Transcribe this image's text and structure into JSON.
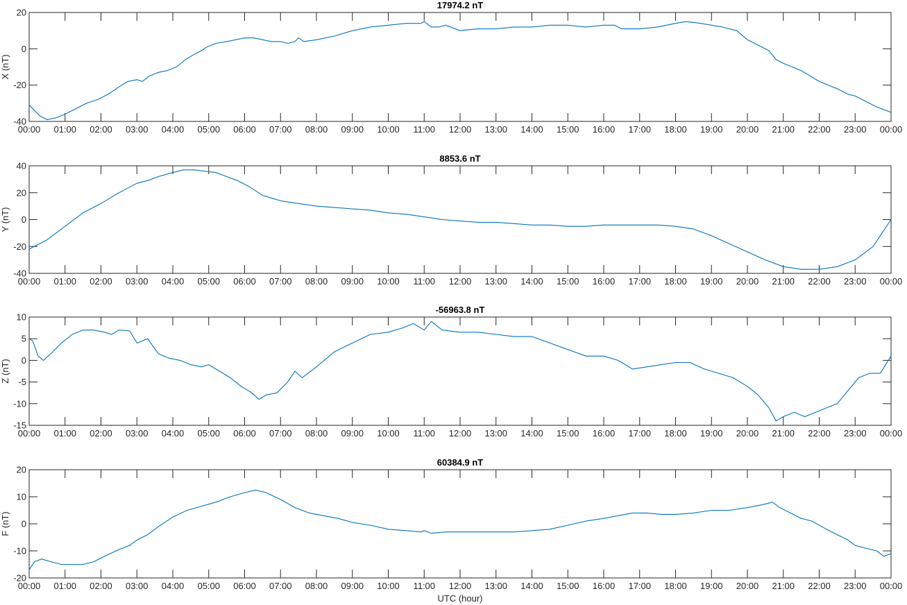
{
  "figure": {
    "xlabel": "UTC (hour)",
    "line_color": "#0072BD",
    "axis_color": "#262626",
    "background": "#ffffff"
  },
  "chart_data": [
    {
      "type": "line",
      "title": "17974.2 nT",
      "ylabel": "X (nT)",
      "xlabel": "",
      "x_unit": "hour (UTC)",
      "xlim": [
        0,
        24
      ],
      "ylim": [
        -40,
        20
      ],
      "yticks": [
        -40,
        -20,
        0,
        20
      ],
      "xtick_labels": [
        "00:00",
        "01:00",
        "02:00",
        "03:00",
        "04:00",
        "05:00",
        "06:00",
        "07:00",
        "08:00",
        "09:00",
        "10:00",
        "11:00",
        "12:00",
        "13:00",
        "14:00",
        "15:00",
        "16:00",
        "17:00",
        "18:00",
        "19:00",
        "20:00",
        "21:00",
        "22:00",
        "23:00",
        "00:00"
      ],
      "grid": false,
      "series": [
        {
          "x": [
            0,
            0.15,
            0.3,
            0.5,
            0.75,
            1.0,
            1.3,
            1.6,
            1.9,
            2.2,
            2.5,
            2.75,
            3.0,
            3.15,
            3.35,
            3.6,
            3.85,
            4.1,
            4.35,
            4.6,
            4.8,
            4.95,
            5.2,
            5.5,
            5.75,
            6.0,
            6.25,
            6.5,
            6.75,
            7.0,
            7.2,
            7.4,
            7.5,
            7.65,
            8.0,
            8.5,
            9.0,
            9.5,
            10.0,
            10.5,
            10.9,
            11.0,
            11.2,
            11.4,
            11.6,
            12.0,
            12.5,
            13.0,
            13.5,
            14.0,
            14.5,
            15.0,
            15.5,
            16.0,
            16.3,
            16.5,
            17.0,
            17.5,
            18.0,
            18.3,
            18.7,
            19.0,
            19.3,
            19.7,
            20.0,
            20.3,
            20.6,
            20.8,
            21.0,
            21.5,
            22.0,
            22.5,
            22.8,
            23.0,
            23.3,
            23.6,
            24.0
          ],
          "y": [
            -31,
            -34,
            -37,
            -39,
            -38,
            -36,
            -33,
            -30,
            -28,
            -25,
            -21,
            -18,
            -17,
            -18,
            -15,
            -13,
            -12,
            -10,
            -6,
            -3,
            -1,
            1,
            3,
            4,
            5,
            6,
            6,
            5,
            4,
            4,
            3,
            4,
            6,
            4,
            5,
            7,
            10,
            12,
            13,
            14,
            14,
            15,
            12,
            12,
            13,
            10,
            11,
            11,
            12,
            12,
            13,
            13,
            12,
            13,
            13,
            11,
            11,
            12,
            14,
            15,
            14,
            13,
            12,
            10,
            5,
            2,
            -1,
            -6,
            -8,
            -12,
            -18,
            -22,
            -25,
            -26,
            -29,
            -32,
            -35
          ]
        }
      ]
    },
    {
      "type": "line",
      "title": "8853.6 nT",
      "ylabel": "Y (nT)",
      "xlabel": "",
      "x_unit": "hour (UTC)",
      "xlim": [
        0,
        24
      ],
      "ylim": [
        -40,
        40
      ],
      "yticks": [
        -40,
        -20,
        0,
        20,
        40
      ],
      "xtick_labels": [
        "00:00",
        "01:00",
        "02:00",
        "03:00",
        "04:00",
        "05:00",
        "06:00",
        "07:00",
        "08:00",
        "09:00",
        "10:00",
        "11:00",
        "12:00",
        "13:00",
        "14:00",
        "15:00",
        "16:00",
        "17:00",
        "18:00",
        "19:00",
        "20:00",
        "21:00",
        "22:00",
        "23:00",
        "00:00"
      ],
      "grid": false,
      "series": [
        {
          "x": [
            0,
            0.5,
            1.0,
            1.5,
            2.0,
            2.5,
            3.0,
            3.3,
            3.6,
            4.0,
            4.3,
            4.6,
            4.9,
            5.2,
            5.5,
            5.8,
            6.1,
            6.5,
            7.0,
            7.5,
            8.0,
            8.5,
            9.0,
            9.5,
            10.0,
            10.5,
            11.0,
            11.5,
            12.0,
            12.5,
            13.0,
            13.5,
            14.0,
            14.5,
            15.0,
            15.5,
            16.0,
            16.5,
            17.0,
            17.5,
            18.0,
            18.5,
            19.0,
            19.5,
            20.0,
            20.5,
            21.0,
            21.5,
            22.0,
            22.5,
            23.0,
            23.5,
            24.0
          ],
          "y": [
            -22,
            -15,
            -5,
            5,
            12,
            20,
            27,
            29,
            32,
            35,
            37,
            37,
            36,
            35,
            32,
            29,
            25,
            18,
            14,
            12,
            10,
            9,
            8,
            7,
            5,
            4,
            2,
            0,
            -1,
            -2,
            -2,
            -3,
            -4,
            -4,
            -5,
            -5,
            -4,
            -4,
            -4,
            -4,
            -5,
            -7,
            -12,
            -18,
            -24,
            -30,
            -35,
            -37,
            -37,
            -35,
            -30,
            -20,
            0
          ]
        }
      ]
    },
    {
      "type": "line",
      "title": "-56963.8 nT",
      "ylabel": "Z (nT)",
      "xlabel": "",
      "x_unit": "hour (UTC)",
      "xlim": [
        0,
        24
      ],
      "ylim": [
        -15,
        10
      ],
      "yticks": [
        -15,
        -10,
        -5,
        0,
        5,
        10
      ],
      "xtick_labels": [
        "00:00",
        "01:00",
        "02:00",
        "03:00",
        "04:00",
        "05:00",
        "06:00",
        "07:00",
        "08:00",
        "09:00",
        "10:00",
        "11:00",
        "12:00",
        "13:00",
        "14:00",
        "15:00",
        "16:00",
        "17:00",
        "18:00",
        "19:00",
        "20:00",
        "21:00",
        "22:00",
        "23:00",
        "00:00"
      ],
      "grid": false,
      "series": [
        {
          "x": [
            0,
            0.1,
            0.25,
            0.4,
            0.6,
            0.9,
            1.2,
            1.5,
            1.8,
            2.1,
            2.3,
            2.5,
            2.8,
            3.0,
            3.3,
            3.6,
            3.9,
            4.2,
            4.5,
            4.8,
            5.0,
            5.3,
            5.6,
            5.9,
            6.2,
            6.4,
            6.6,
            6.9,
            7.2,
            7.4,
            7.6,
            8.0,
            8.5,
            9.0,
            9.5,
            10.0,
            10.4,
            10.7,
            11.0,
            11.2,
            11.5,
            12.0,
            12.5,
            13.0,
            13.5,
            14.0,
            14.5,
            15.0,
            15.5,
            16.0,
            16.4,
            16.8,
            17.2,
            17.6,
            18.0,
            18.4,
            18.8,
            19.2,
            19.6,
            20.0,
            20.3,
            20.6,
            20.8,
            21.0,
            21.3,
            21.6,
            21.9,
            22.2,
            22.5,
            22.8,
            23.1,
            23.4,
            23.7,
            24.0
          ],
          "y": [
            5,
            4.5,
            1,
            0,
            1.5,
            4,
            6,
            7,
            7,
            6.5,
            6,
            7,
            6.8,
            4,
            5,
            1.5,
            0.5,
            0,
            -1,
            -1.5,
            -1,
            -2.5,
            -4,
            -6,
            -7.5,
            -9,
            -8,
            -7.5,
            -5,
            -2.5,
            -4,
            -1.5,
            2,
            4,
            6,
            6.5,
            7.5,
            8.5,
            7,
            9,
            7,
            6.5,
            6.5,
            6,
            5.5,
            5.5,
            4,
            2.5,
            1,
            1,
            0,
            -2,
            -1.5,
            -1,
            -0.5,
            -0.5,
            -2,
            -3,
            -4,
            -6,
            -8,
            -11,
            -14,
            -13,
            -12,
            -13,
            -12,
            -11,
            -10,
            -7,
            -4,
            -3,
            -3,
            1
          ]
        }
      ]
    },
    {
      "type": "line",
      "title": "60384.9 nT",
      "ylabel": "F (nT)",
      "xlabel": "UTC (hour)",
      "x_unit": "hour (UTC)",
      "xlim": [
        0,
        24
      ],
      "ylim": [
        -20,
        20
      ],
      "yticks": [
        -20,
        -10,
        0,
        10,
        20
      ],
      "xtick_labels": [
        "00:00",
        "01:00",
        "02:00",
        "03:00",
        "04:00",
        "05:00",
        "06:00",
        "07:00",
        "08:00",
        "09:00",
        "10:00",
        "11:00",
        "12:00",
        "13:00",
        "14:00",
        "15:00",
        "16:00",
        "17:00",
        "18:00",
        "19:00",
        "20:00",
        "21:00",
        "22:00",
        "23:00",
        "00:00"
      ],
      "grid": false,
      "series": [
        {
          "x": [
            0,
            0.15,
            0.35,
            0.6,
            0.9,
            1.2,
            1.5,
            1.8,
            2.1,
            2.5,
            2.8,
            3.0,
            3.3,
            3.6,
            4.0,
            4.4,
            4.8,
            5.2,
            5.6,
            6.0,
            6.3,
            6.6,
            7.0,
            7.4,
            7.8,
            8.2,
            8.6,
            9.0,
            9.5,
            10.0,
            10.5,
            10.9,
            11.0,
            11.2,
            11.6,
            12.0,
            12.5,
            13.0,
            13.5,
            14.0,
            14.5,
            15.0,
            15.5,
            16.0,
            16.4,
            16.8,
            17.2,
            17.6,
            18.0,
            18.5,
            19.0,
            19.5,
            20.0,
            20.4,
            20.7,
            20.9,
            21.2,
            21.5,
            21.8,
            22.2,
            22.5,
            22.8,
            23.0,
            23.3,
            23.6,
            23.8,
            24.0
          ],
          "y": [
            -17,
            -14,
            -13,
            -14,
            -15,
            -15,
            -15,
            -14,
            -12,
            -9.5,
            -8,
            -6,
            -4,
            -1,
            2.5,
            5,
            6.5,
            8,
            10,
            11.5,
            12.5,
            11.5,
            9,
            6,
            4,
            3,
            2,
            0.5,
            -0.5,
            -2,
            -2.5,
            -3,
            -2.5,
            -3.5,
            -3,
            -3,
            -3,
            -3,
            -3,
            -2.5,
            -2,
            -0.5,
            1,
            2,
            3,
            4,
            4,
            3.5,
            3.5,
            4,
            5,
            5,
            6,
            7,
            8,
            6,
            4,
            2,
            1,
            -2,
            -4,
            -6,
            -8,
            -9,
            -10,
            -12,
            -11
          ]
        }
      ]
    }
  ]
}
